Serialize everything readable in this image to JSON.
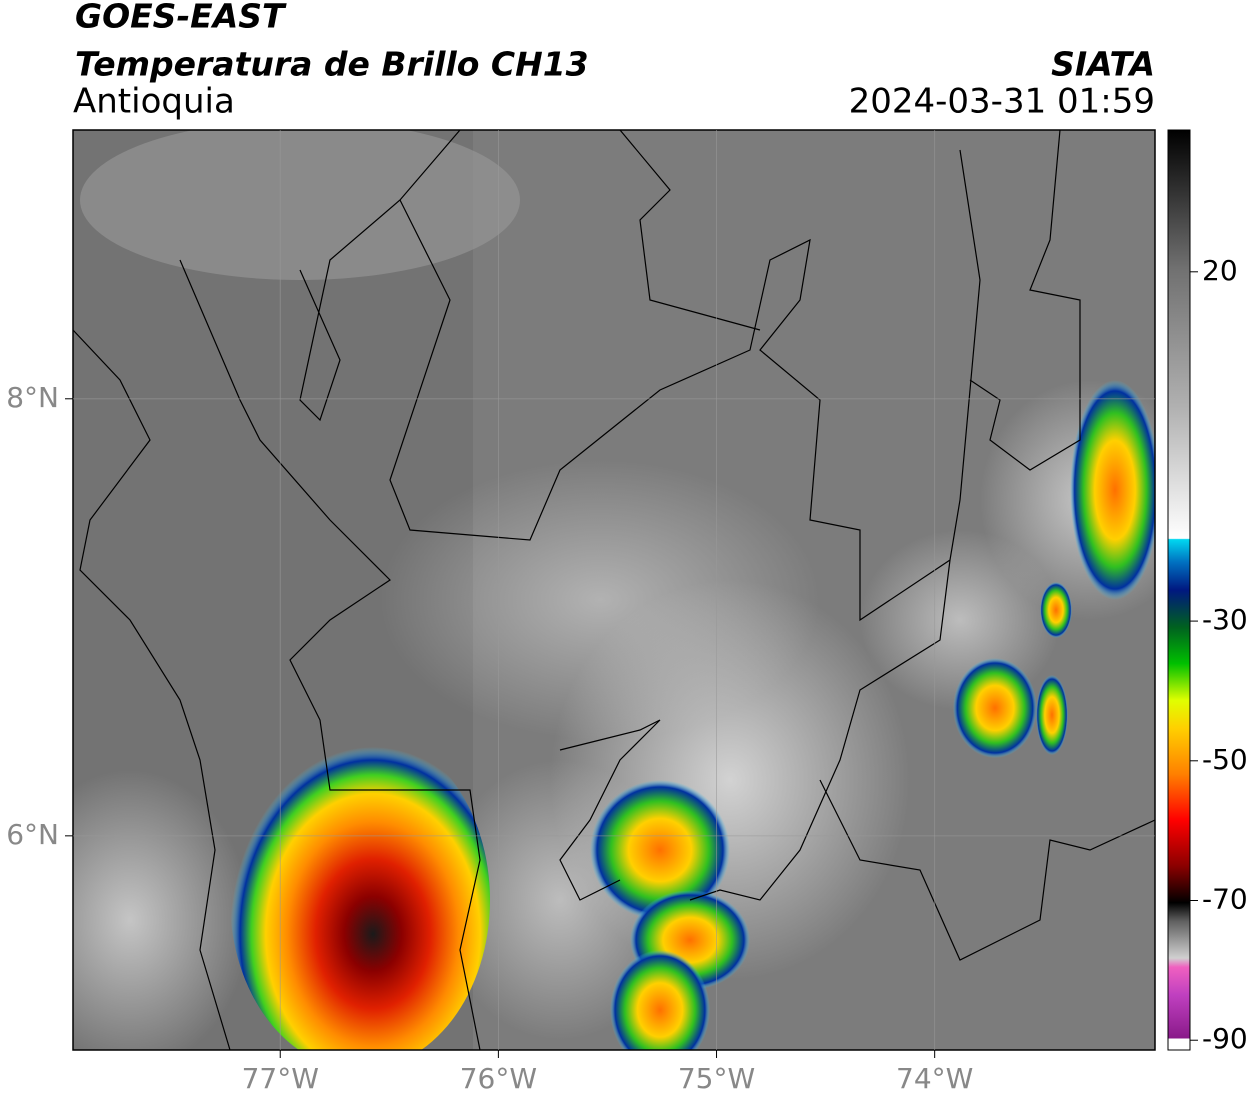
{
  "header": {
    "satellite": "GOES-EAST",
    "product": "Temperatura de Brillo CH13",
    "region": "Antioquia",
    "source": "SIATA",
    "datetime": "2024-03-31 01:59"
  },
  "map": {
    "xlim": [
      -77.95,
      -72.99
    ],
    "ylim": [
      5.02,
      9.23
    ],
    "xticks": [
      {
        "value": -77,
        "label": "77°W"
      },
      {
        "value": -76,
        "label": "76°W"
      },
      {
        "value": -75,
        "label": "75°W"
      },
      {
        "value": -74,
        "label": "74°W"
      }
    ],
    "yticks": [
      {
        "value": 6,
        "label": "6°N"
      },
      {
        "value": 8,
        "label": "8°N"
      }
    ],
    "grid": true
  },
  "colorbar": {
    "lim": [
      -91.4,
      40.3
    ],
    "ticks": [
      20,
      -30,
      -50,
      -70,
      -90
    ]
  }
}
